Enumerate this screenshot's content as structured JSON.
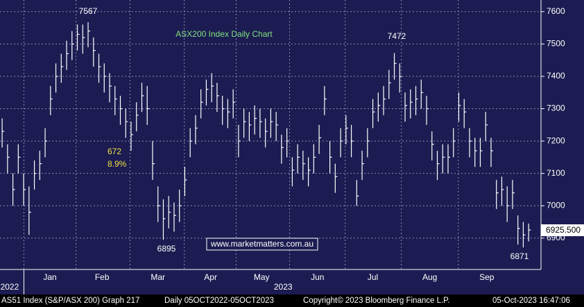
{
  "chart_data": {
    "type": "hlc",
    "title": "ASX200 Index Daily Chart",
    "watermark": "www.marketmatters.com.au",
    "last_price_label": "6925.500",
    "color": "#ffffff",
    "grid": true,
    "series": [
      {
        "name": "high",
        "values": [
          7270,
          7190,
          7100,
          7190,
          7100,
          7060,
          7140,
          7170,
          7240,
          7370,
          7440,
          7470,
          7510,
          7540,
          7560,
          7560,
          7567,
          7520,
          7470,
          7440,
          7410,
          7370,
          7340,
          7300,
          7260,
          7320,
          7380,
          7370,
          7200,
          7060,
          7020,
          7030,
          7010,
          7050,
          7120,
          7240,
          7280,
          7360,
          7390,
          7410,
          7380,
          7340,
          7330,
          7360,
          7250,
          7300,
          7290,
          7310,
          7300,
          7270,
          7300,
          7290,
          7220,
          7240,
          7150,
          7190,
          7170,
          7150,
          7190,
          7250,
          7370,
          7200,
          7130,
          7240,
          7280,
          7250,
          7080,
          7170,
          7240,
          7330,
          7350,
          7370,
          7420,
          7472,
          7440,
          7350,
          7360,
          7370,
          7390,
          7340,
          7230,
          7170,
          7190,
          7190,
          7240,
          7350,
          7330,
          7240,
          7210,
          7210,
          7290,
          7210,
          7080,
          7090,
          7060,
          7080,
          6970,
          6950,
          6945
        ]
      },
      {
        "name": "low",
        "values": [
          7180,
          7100,
          7000,
          7100,
          7000,
          6910,
          7050,
          7080,
          7150,
          7280,
          7350,
          7380,
          7420,
          7450,
          7480,
          7470,
          7490,
          7430,
          7380,
          7350,
          7320,
          7280,
          7250,
          7210,
          7170,
          7230,
          7290,
          7250,
          7080,
          6950,
          6895,
          6930,
          6920,
          6950,
          7030,
          7150,
          7190,
          7270,
          7310,
          7320,
          7290,
          7250,
          7240,
          7270,
          7150,
          7210,
          7200,
          7220,
          7210,
          7180,
          7210,
          7200,
          7130,
          7150,
          7060,
          7100,
          7080,
          7060,
          7100,
          7160,
          7280,
          7100,
          7040,
          7150,
          7190,
          7150,
          7000,
          7080,
          7150,
          7240,
          7260,
          7280,
          7330,
          7390,
          7350,
          7260,
          7270,
          7280,
          7300,
          7250,
          7140,
          7080,
          7100,
          7100,
          7150,
          7260,
          7240,
          7150,
          7120,
          7120,
          7200,
          7120,
          6990,
          7000,
          6950,
          6990,
          6880,
          6871,
          6890
        ]
      },
      {
        "name": "close",
        "values": [
          7230,
          7150,
          7050,
          7150,
          7050,
          6980,
          7100,
          7130,
          7200,
          7330,
          7400,
          7430,
          7470,
          7500,
          7530,
          7520,
          7540,
          7480,
          7430,
          7400,
          7370,
          7330,
          7300,
          7260,
          7220,
          7280,
          7340,
          7300,
          7130,
          7000,
          6960,
          6980,
          6970,
          7000,
          7080,
          7200,
          7240,
          7320,
          7360,
          7370,
          7340,
          7300,
          7290,
          7320,
          7200,
          7260,
          7250,
          7270,
          7260,
          7230,
          7260,
          7250,
          7180,
          7200,
          7110,
          7150,
          7130,
          7110,
          7150,
          7210,
          7330,
          7150,
          7090,
          7200,
          7240,
          7200,
          7030,
          7130,
          7200,
          7290,
          7310,
          7330,
          7380,
          7440,
          7400,
          7310,
          7320,
          7330,
          7350,
          7300,
          7190,
          7130,
          7150,
          7150,
          7200,
          7310,
          7290,
          7200,
          7170,
          7170,
          7250,
          7170,
          7040,
          7050,
          7000,
          7040,
          6930,
          6910,
          6925
        ]
      }
    ],
    "ylim": [
      6803,
      7636
    ],
    "yticks": [
      6900,
      7000,
      7100,
      7200,
      7300,
      7400,
      7500,
      7600
    ],
    "xlim": [
      -0.4,
      100.3
    ],
    "xticks": [
      {
        "value": 8.9,
        "label": "Jan"
      },
      {
        "value": 18.6,
        "label": "Feb"
      },
      {
        "value": 29,
        "label": "Mar"
      },
      {
        "value": 38.8,
        "label": "Apr"
      },
      {
        "value": 48.3,
        "label": "May"
      },
      {
        "value": 58.7,
        "label": "Jun"
      },
      {
        "value": 69,
        "label": "Jul"
      },
      {
        "value": 79.6,
        "label": "Aug"
      },
      {
        "value": 90.2,
        "label": "Sep"
      }
    ],
    "year_ticks": [
      {
        "value": 1.4,
        "label": "2022"
      },
      {
        "value": 52.3,
        "label": "2023"
      }
    ],
    "annotations": [
      "7567",
      "7472",
      "6895",
      "6871",
      "672",
      "8.9%"
    ],
    "footer": [
      "AS51 Index (S&P/ASX 200) Graph 217",
      "Daily 05OCT2022-05OCT2023",
      "Copyright© 2023 Bloomberg Finance L.P.",
      "05-Oct-2023 16:47:06"
    ]
  }
}
